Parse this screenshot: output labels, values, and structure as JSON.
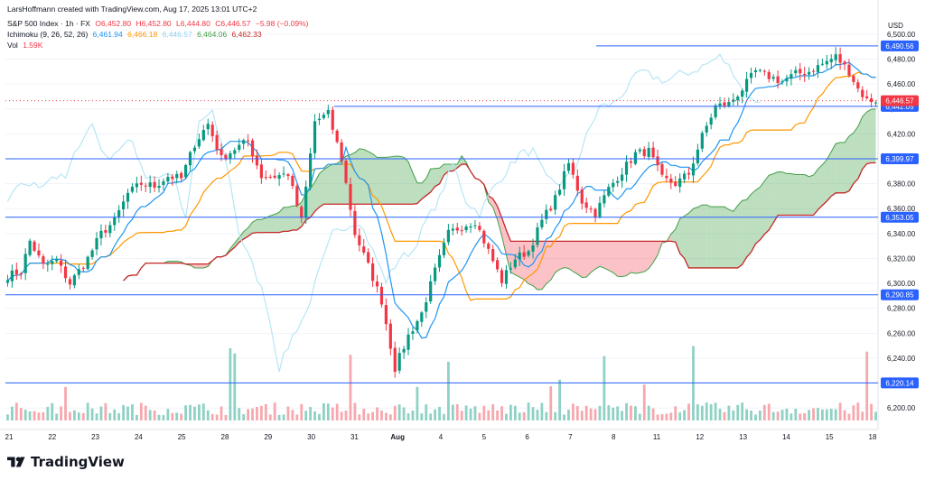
{
  "header": {
    "attribution": "LarsHoffmann created with TradingView.com, Aug 17, 2025 13:01 UTC+2",
    "symbol": "S&P 500 Index · 1h · FX",
    "ohlc": {
      "o": "O6,452.80",
      "h": "H6,452.80",
      "l": "L6,444.80",
      "c": "C6,446.57",
      "chg": "−5.98 (−0.09%)"
    },
    "ichimoku_label": "Ichimoku (9, 26, 52, 26)",
    "ichimoku_values": [
      "6,461.94",
      "6,466.18",
      "6,446.57",
      "6,464.06",
      "6,462.33"
    ],
    "vol_label": "Vol",
    "vol_value": "1.59K",
    "currency": "USD"
  },
  "footer": {
    "brand": "TradingView"
  },
  "colors": {
    "up": "#089981",
    "down": "#f23645",
    "tenkan": "#2196f3",
    "kijun": "#ff9800",
    "chikou": "#b2e4f4",
    "spanA": "#43a047",
    "spanB": "#c62828",
    "cloudUp": "rgba(67,160,71,0.35)",
    "cloudDown": "rgba(242,54,69,0.30)",
    "level": "#2962ff",
    "volUp": "#8fd1c4",
    "volDown": "#f6a8ae"
  },
  "chart_data": {
    "type": "candlestick",
    "title": "S&P 500 Index · 1h · FX",
    "ylim": [
      6190,
      6510
    ],
    "y_ticks": [
      6200,
      6220,
      6240,
      6260,
      6280,
      6300,
      6320,
      6340,
      6360,
      6380,
      6400,
      6420,
      6440,
      6460,
      6480,
      6500
    ],
    "y_tick_labels": [
      "6,200.00",
      "6,220.00",
      "6,240.00",
      "6,260.00",
      "6,280.00",
      "6,300.00",
      "6,320.00",
      "6,340.00",
      "6,360.00",
      "6,380.00",
      "6,400.00",
      "6,420.00",
      "6,440.00",
      "6,460.00",
      "6,480.00",
      "6,500.00"
    ],
    "x_labels": [
      "21",
      "22",
      "23",
      "24",
      "25",
      "28",
      "29",
      "30",
      "31",
      "Aug",
      "4",
      "5",
      "6",
      "7",
      "8",
      "11",
      "12",
      "13",
      "14",
      "15",
      "18"
    ],
    "price_anchors": [
      [
        0,
        6306
      ],
      [
        3,
        6310
      ],
      [
        5,
        6334
      ],
      [
        8,
        6314
      ],
      [
        11,
        6318
      ],
      [
        14,
        6300
      ],
      [
        18,
        6320
      ],
      [
        21,
        6340
      ],
      [
        24,
        6350
      ],
      [
        27,
        6372
      ],
      [
        30,
        6380
      ],
      [
        33,
        6378
      ],
      [
        36,
        6386
      ],
      [
        39,
        6384
      ],
      [
        42,
        6412
      ],
      [
        45,
        6428
      ],
      [
        48,
        6400
      ],
      [
        51,
        6408
      ],
      [
        54,
        6414
      ],
      [
        57,
        6386
      ],
      [
        60,
        6386
      ],
      [
        63,
        6388
      ],
      [
        66,
        6350
      ],
      [
        69,
        6430
      ],
      [
        72,
        6436
      ],
      [
        75,
        6400
      ],
      [
        78,
        6340
      ],
      [
        81,
        6314
      ],
      [
        84,
        6286
      ],
      [
        87,
        6232
      ],
      [
        90,
        6258
      ],
      [
        93,
        6276
      ],
      [
        96,
        6310
      ],
      [
        99,
        6340
      ],
      [
        102,
        6346
      ],
      [
        105,
        6350
      ],
      [
        108,
        6326
      ],
      [
        111,
        6302
      ],
      [
        114,
        6320
      ],
      [
        117,
        6326
      ],
      [
        120,
        6350
      ],
      [
        123,
        6368
      ],
      [
        126,
        6396
      ],
      [
        129,
        6366
      ],
      [
        132,
        6356
      ],
      [
        135,
        6376
      ],
      [
        138,
        6390
      ],
      [
        141,
        6404
      ],
      [
        144,
        6406
      ],
      [
        147,
        6384
      ],
      [
        150,
        6380
      ],
      [
        153,
        6388
      ],
      [
        156,
        6418
      ],
      [
        159,
        6442
      ],
      [
        162,
        6444
      ],
      [
        165,
        6456
      ],
      [
        168,
        6470
      ],
      [
        171,
        6466
      ],
      [
        174,
        6462
      ],
      [
        177,
        6468
      ],
      [
        180,
        6470
      ],
      [
        183,
        6476
      ],
      [
        186,
        6482
      ],
      [
        189,
        6470
      ],
      [
        191,
        6456
      ],
      [
        193,
        6447
      ]
    ],
    "levels": [
      {
        "value": 6490.56,
        "label": "6,490.56"
      },
      {
        "value": 6442.05,
        "label": "6,442.05"
      },
      {
        "value": 6399.97,
        "label": "6,399.97"
      },
      {
        "value": 6353.05,
        "label": "6,353.05"
      },
      {
        "value": 6290.85,
        "label": "6,290.85"
      },
      {
        "value": 6220.14,
        "label": "6,220.14"
      }
    ],
    "last_price": {
      "value": 6446.57,
      "label": "6,446.57"
    },
    "volume_label": "1.59K"
  }
}
